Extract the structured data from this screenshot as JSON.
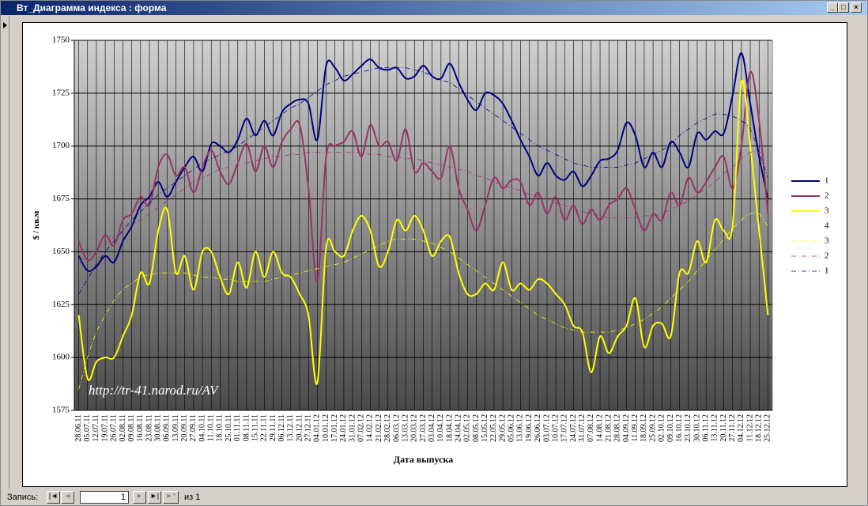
{
  "window": {
    "title": "Вт_Диаграмма индекса : форма"
  },
  "status": {
    "record_label": "Запись:",
    "current": "1",
    "of_label": "из 1"
  },
  "chart_data": {
    "type": "line",
    "y_label": "$ / кв.м",
    "x_label": "Дата выпуска",
    "annotation": "http://tr-41.narod.ru/AV",
    "ylim": [
      1575,
      1750
    ],
    "yticks": [
      1575,
      1600,
      1625,
      1650,
      1675,
      1700,
      1725,
      1750
    ],
    "grid": true,
    "legend": "right",
    "categories": [
      "28.06.11",
      "05.07.11",
      "12.07.11",
      "19.07.11",
      "26.07.11",
      "02.08.11",
      "09.08.11",
      "16.08.11",
      "23.08.11",
      "30.08.11",
      "06.09.11",
      "13.09.11",
      "20.09.11",
      "27.09.11",
      "04.10.11",
      "11.10.11",
      "18.10.11",
      "25.10.11",
      "01.11.11",
      "08.11.11",
      "15.11.11",
      "22.11.11",
      "29.11.11",
      "06.12.11",
      "13.12.11",
      "20.12.11",
      "27.12.11",
      "04.01.12",
      "10.01.12",
      "17.01.12",
      "24.01.12",
      "31.01.12",
      "07.02.12",
      "14.02.12",
      "21.02.12",
      "28.02.12",
      "06.03.12",
      "13.03.12",
      "20.03.12",
      "27.03.12",
      "03.04.12",
      "10.04.12",
      "18.04.12",
      "24.04.12",
      "02.05.12",
      "08.05.12",
      "15.05.12",
      "22.05.12",
      "29.05.12",
      "05.06.12",
      "13.06.12",
      "19.06.12",
      "26.06.12",
      "03.07.12",
      "10.07.12",
      "17.07.12",
      "24.07.12",
      "31.07.12",
      "07.08.12",
      "14.08.12",
      "21.08.12",
      "28.08.12",
      "04.09.12",
      "11.09.12",
      "18.09.12",
      "25.09.12",
      "02.10.12",
      "09.10.12",
      "16.10.12",
      "23.10.12",
      "30.10.12",
      "06.11.12",
      "13.11.12",
      "20.11.12",
      "27.11.12",
      "04.12.12",
      "11.12.12",
      "18.12.12",
      "25.12.12"
    ],
    "series": [
      {
        "name": "1",
        "color": "#000080",
        "dashed": false,
        "values": [
          1648,
          1641,
          1643,
          1648,
          1645,
          1655,
          1662,
          1672,
          1676,
          1683,
          1676,
          1683,
          1690,
          1695,
          1688,
          1701,
          1700,
          1697,
          1703,
          1713,
          1705,
          1712,
          1705,
          1716,
          1720,
          1722,
          1720,
          1703,
          1738,
          1737,
          1731,
          1734,
          1738,
          1741,
          1737,
          1736,
          1737,
          1732,
          1733,
          1738,
          1733,
          1732,
          1739,
          1730,
          1722,
          1717,
          1725,
          1724,
          1720,
          1712,
          1703,
          1695,
          1686,
          1692,
          1686,
          1684,
          1688,
          1681,
          1686,
          1693,
          1694,
          1698,
          1711,
          1705,
          1690,
          1697,
          1690,
          1702,
          1697,
          1690,
          1706,
          1703,
          1707,
          1706,
          1724,
          1744,
          1720,
          1695,
          1675
        ]
      },
      {
        "name": "2",
        "color": "#993366",
        "dashed": false,
        "values": [
          1655,
          1646,
          1650,
          1658,
          1653,
          1665,
          1668,
          1676,
          1672,
          1690,
          1696,
          1686,
          1690,
          1678,
          1690,
          1698,
          1688,
          1682,
          1692,
          1701,
          1688,
          1700,
          1690,
          1702,
          1708,
          1710,
          1680,
          1636,
          1695,
          1700,
          1702,
          1707,
          1695,
          1710,
          1700,
          1702,
          1693,
          1708,
          1688,
          1692,
          1688,
          1685,
          1700,
          1680,
          1670,
          1660,
          1672,
          1685,
          1680,
          1684,
          1683,
          1672,
          1678,
          1668,
          1676,
          1665,
          1672,
          1663,
          1670,
          1665,
          1672,
          1675,
          1680,
          1670,
          1660,
          1668,
          1665,
          1678,
          1672,
          1685,
          1678,
          1683,
          1690,
          1695,
          1680,
          1700,
          1735,
          1712,
          1668
        ]
      },
      {
        "name": "3",
        "color": "#ffff00",
        "dashed": false,
        "values": [
          1620,
          1590,
          1598,
          1600,
          1600,
          1610,
          1620,
          1640,
          1635,
          1660,
          1670,
          1640,
          1648,
          1632,
          1650,
          1650,
          1638,
          1630,
          1645,
          1633,
          1650,
          1638,
          1650,
          1640,
          1638,
          1630,
          1620,
          1588,
          1652,
          1650,
          1648,
          1660,
          1667,
          1660,
          1643,
          1650,
          1665,
          1660,
          1667,
          1660,
          1648,
          1655,
          1657,
          1640,
          1630,
          1630,
          1635,
          1632,
          1645,
          1632,
          1635,
          1632,
          1637,
          1635,
          1630,
          1625,
          1615,
          1612,
          1593,
          1610,
          1602,
          1610,
          1615,
          1628,
          1605,
          1615,
          1616,
          1610,
          1640,
          1640,
          1655,
          1645,
          1665,
          1660,
          1662,
          1730,
          1700,
          1660,
          1620
        ]
      },
      {
        "name": "4",
        "color": "none",
        "dashed": false,
        "values": [
          null,
          null,
          null,
          null,
          null,
          null,
          null,
          null,
          null,
          null,
          null,
          null,
          null,
          null,
          null,
          null,
          null,
          null,
          null,
          null,
          null,
          null,
          null,
          null,
          null,
          null,
          null,
          null,
          null,
          null,
          null,
          null,
          null,
          null,
          null,
          null,
          null,
          null,
          null,
          null,
          null,
          null,
          null,
          null,
          null,
          null,
          null,
          null,
          null,
          null,
          null,
          null,
          null,
          null,
          null,
          null,
          null,
          null,
          null,
          null,
          null,
          null,
          null,
          null,
          null,
          null,
          null,
          null,
          null,
          null,
          null,
          null,
          null,
          null,
          null,
          null,
          null,
          null,
          null
        ]
      },
      {
        "name": "3",
        "color": "#ffff00",
        "dashed": true,
        "values": [
          1585,
          1600,
          1612,
          1620,
          1627,
          1632,
          1635,
          1638,
          1639,
          1640,
          1640,
          1640,
          1640,
          1639,
          1638,
          1638,
          1637,
          1637,
          1636,
          1636,
          1636,
          1636,
          1637,
          1638,
          1639,
          1640,
          1641,
          1642,
          1643,
          1644,
          1645,
          1647,
          1649,
          1651,
          1653,
          1655,
          1656,
          1656,
          1656,
          1655,
          1654,
          1652,
          1650,
          1647,
          1644,
          1641,
          1638,
          1635,
          1632,
          1629,
          1626,
          1623,
          1620,
          1618,
          1616,
          1614,
          1613,
          1612,
          1612,
          1612,
          1612,
          1613,
          1614,
          1616,
          1618,
          1621,
          1624,
          1628,
          1632,
          1636,
          1641,
          1646,
          1651,
          1656,
          1661,
          1665,
          1668,
          1668,
          1662
        ]
      },
      {
        "name": "2",
        "color": "#993366",
        "dashed": true,
        "values": [
          1645,
          1648,
          1651,
          1654,
          1657,
          1660,
          1663,
          1665,
          1668,
          1671,
          1674,
          1677,
          1680,
          1683,
          1685,
          1687,
          1689,
          1690,
          1691,
          1692,
          1693,
          1694,
          1695,
          1695,
          1696,
          1696,
          1697,
          1697,
          1697,
          1697,
          1697,
          1697,
          1697,
          1696,
          1696,
          1695,
          1695,
          1694,
          1694,
          1693,
          1692,
          1691,
          1690,
          1689,
          1688,
          1686,
          1685,
          1683,
          1682,
          1680,
          1679,
          1677,
          1676,
          1675,
          1673,
          1672,
          1670,
          1669,
          1668,
          1667,
          1666,
          1666,
          1666,
          1666,
          1667,
          1667,
          1668,
          1670,
          1672,
          1674,
          1677,
          1680,
          1683,
          1687,
          1690,
          1694,
          1697,
          1697,
          1695
        ]
      },
      {
        "name": "1",
        "color": "#000080",
        "dashed": true,
        "values": [
          1630,
          1637,
          1644,
          1650,
          1655,
          1660,
          1665,
          1669,
          1673,
          1677,
          1680,
          1683,
          1686,
          1689,
          1692,
          1694,
          1696,
          1698,
          1700,
          1703,
          1706,
          1709,
          1712,
          1715,
          1718,
          1720,
          1723,
          1726,
          1729,
          1731,
          1733,
          1734,
          1735,
          1736,
          1737,
          1737,
          1737,
          1737,
          1736,
          1735,
          1733,
          1731,
          1730,
          1727,
          1724,
          1721,
          1718,
          1715,
          1712,
          1709,
          1706,
          1703,
          1700,
          1698,
          1696,
          1694,
          1692,
          1691,
          1690,
          1690,
          1690,
          1690,
          1691,
          1692,
          1694,
          1696,
          1698,
          1701,
          1705,
          1708,
          1711,
          1713,
          1715,
          1715,
          1714,
          1712,
          1708,
          1697,
          1685
        ]
      }
    ]
  }
}
